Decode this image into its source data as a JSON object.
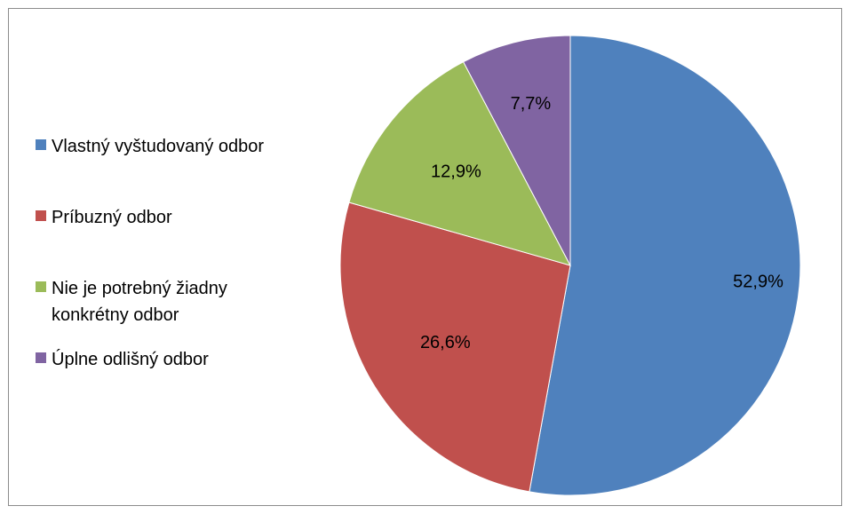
{
  "chart_data": {
    "type": "pie",
    "categories": [
      "Vlastný vyštudovaný odbor",
      "Príbuzný odbor",
      "Nie je potrebný žiadny konkrétny odbor",
      "Úplne odlišný odbor"
    ],
    "values": [
      52.9,
      26.6,
      12.9,
      7.7
    ],
    "data_labels": [
      "52,9%",
      "26,6%",
      "12,9%",
      "7,7%"
    ],
    "colors": [
      "#4f81bd",
      "#c0504d",
      "#9bbb59",
      "#8064a2"
    ],
    "title": "",
    "legend_position": "left",
    "start_angle_deg": 0,
    "direction": "clockwise"
  }
}
